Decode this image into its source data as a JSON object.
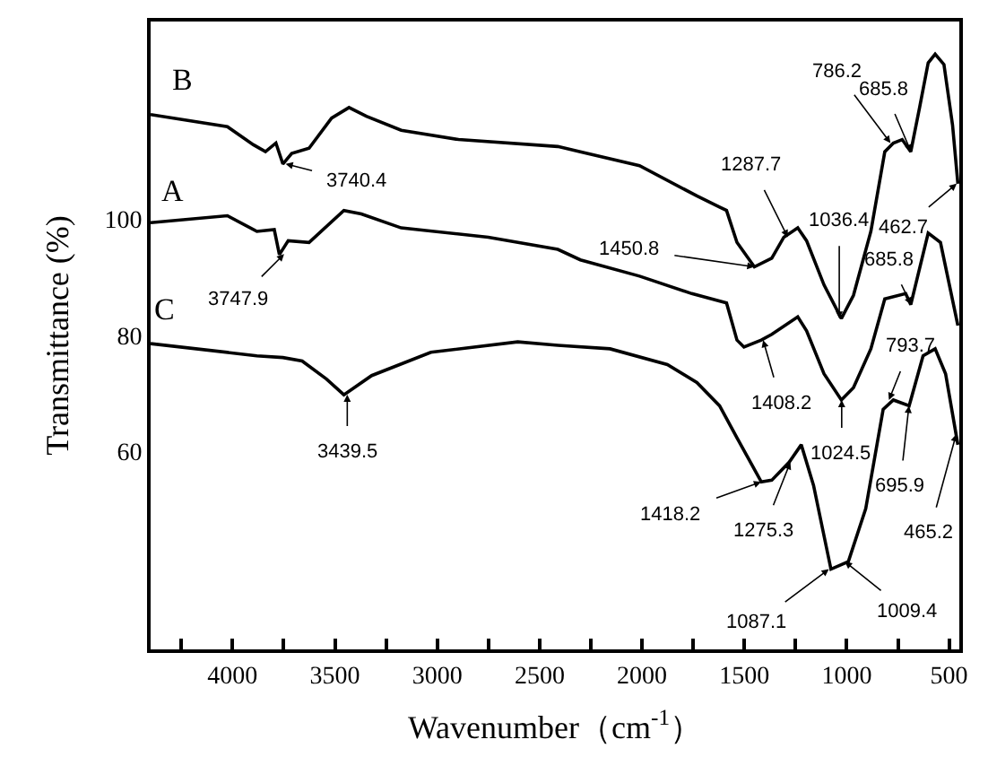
{
  "chart_data": {
    "type": "line",
    "xlabel": "Wavenumber（cm$^{-1}$）",
    "ylabel": "Transmittance (%)",
    "xlim": [
      4400,
      450
    ],
    "ylim": [
      26,
      134
    ],
    "xticks": [
      {
        "value": 4250,
        "label": null
      },
      4000,
      {
        "value": 3750,
        "label": null
      },
      3500,
      {
        "value": 3250,
        "label": null
      },
      3000,
      {
        "value": 2750,
        "label": null
      },
      2500,
      {
        "value": 2250,
        "label": null
      },
      2000,
      {
        "value": 1750,
        "label": null
      },
      1500,
      {
        "value": 1250,
        "label": null
      },
      1000,
      {
        "value": 750,
        "label": null
      },
      500
    ],
    "yticks": [
      60,
      80,
      100
    ],
    "legend": false,
    "marker": "none",
    "line_style": "solid",
    "series": [
      {
        "name": "B",
        "color": "#000000",
        "x": [
          4400,
          4025,
          3898,
          3839,
          3788,
          3754,
          3711,
          3626,
          3516,
          3431,
          3346,
          3176,
          2896,
          2411,
          2301,
          2012,
          1732,
          1621,
          1587,
          1536,
          1451,
          1366,
          1307,
          1239,
          1196,
          1111,
          1026,
          967,
          882,
          814,
          772,
          729,
          687,
          644,
          602,
          568,
          525,
          483,
          457
        ],
        "values": [
          118.0,
          115.9,
          112.8,
          111.6,
          113.1,
          109.5,
          111.3,
          112.2,
          117.4,
          119.2,
          117.7,
          115.3,
          113.7,
          112.5,
          111.6,
          109.2,
          104.0,
          102.1,
          101.5,
          96.0,
          91.8,
          93.3,
          96.9,
          98.5,
          96.3,
          88.7,
          82.9,
          86.9,
          97.9,
          111.6,
          113.1,
          113.7,
          111.6,
          119.2,
          126.9,
          128.4,
          126.6,
          116.2,
          106.1
        ]
      },
      {
        "name": "A",
        "color": "#000000",
        "x": [
          4400,
          4025,
          3881,
          3796,
          3771,
          3728,
          3626,
          3456,
          3371,
          3176,
          2751,
          2411,
          2301,
          2012,
          1757,
          1587,
          1536,
          1502,
          1417,
          1366,
          1239,
          1196,
          1111,
          1026,
          967,
          882,
          814,
          712,
          687,
          602,
          542,
          457
        ],
        "values": [
          99.4,
          100.6,
          97.9,
          98.2,
          93.9,
          96.3,
          96.0,
          101.5,
          100.9,
          98.5,
          96.9,
          94.8,
          93.0,
          90.2,
          87.2,
          85.6,
          79.2,
          78.0,
          79.2,
          80.2,
          83.2,
          80.8,
          73.4,
          68.9,
          71.0,
          77.7,
          86.3,
          87.2,
          85.3,
          97.6,
          96.0,
          81.7
        ]
      },
      {
        "name": "C",
        "color": "#000000",
        "x": [
          4400,
          3881,
          3754,
          3660,
          3541,
          3456,
          3320,
          3031,
          2607,
          2411,
          2156,
          1876,
          1732,
          1621,
          1536,
          1417,
          1366,
          1281,
          1222,
          1162,
          1077,
          992,
          907,
          822,
          772,
          695,
          627,
          568,
          517,
          457
        ],
        "values": [
          78.6,
          76.5,
          76.2,
          75.6,
          72.5,
          69.8,
          73.1,
          77.1,
          78.9,
          78.3,
          77.7,
          75.0,
          71.9,
          67.9,
          62.4,
          54.8,
          55.1,
          58.2,
          61.2,
          54.2,
          39.8,
          41.1,
          50.2,
          67.3,
          68.9,
          67.9,
          76.5,
          77.7,
          73.4,
          61.2
        ]
      }
    ],
    "annotations": [
      {
        "text": "3740.4",
        "x": 3740.4,
        "y": 109.5
      },
      {
        "text": "1450.8",
        "x": 1450.8,
        "y": 91.8
      },
      {
        "text": "1287.7",
        "x": 1287.7,
        "y": 96.9
      },
      {
        "text": "1036.4",
        "x": 1036.4,
        "y": 82.9
      },
      {
        "text": "786.2",
        "x": 786.2,
        "y": 113.1
      },
      {
        "text": "685.8",
        "x": 685.8,
        "y": 111.6
      },
      {
        "text": "462.7",
        "x": 462.7,
        "y": 106.1
      },
      {
        "text": "3747.9",
        "x": 3747.9,
        "y": 94.0
      },
      {
        "text": "1408.2",
        "x": 1408.2,
        "y": 79.2
      },
      {
        "text": "1024.5",
        "x": 1024.5,
        "y": 68.9
      },
      {
        "text": "685.8",
        "x": 685.8,
        "y": 85.3
      },
      {
        "text": "3439.5",
        "x": 3439.5,
        "y": 69.8
      },
      {
        "text": "1418.2",
        "x": 1418.2,
        "y": 54.8
      },
      {
        "text": "1275.3",
        "x": 1275.3,
        "y": 58.2
      },
      {
        "text": "1087.1",
        "x": 1087.1,
        "y": 39.8
      },
      {
        "text": "1009.4",
        "x": 1009.4,
        "y": 41.1
      },
      {
        "text": "793.7",
        "x": 793.7,
        "y": 68.9
      },
      {
        "text": "695.9",
        "x": 695.9,
        "y": 67.9
      },
      {
        "text": "465.2",
        "x": 465.2,
        "y": 63.0
      }
    ]
  }
}
